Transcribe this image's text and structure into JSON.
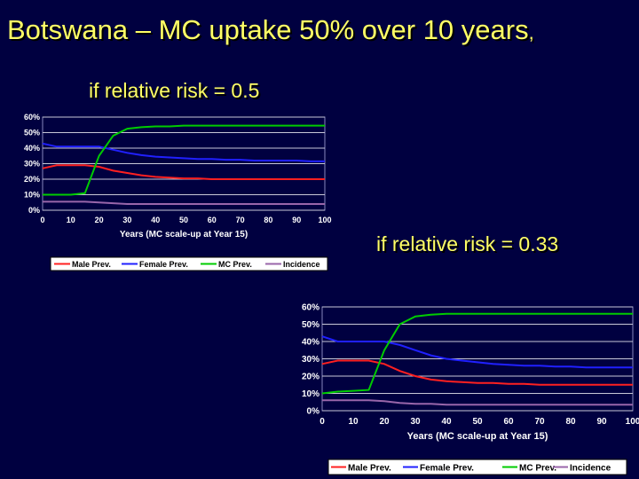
{
  "slide": {
    "title": "Botswana – MC uptake 50% over 10 years",
    "title_suffix": ",",
    "subtitle_1": "if relative risk = 0.5",
    "subtitle_2": "if relative risk = 0.33"
  },
  "colors": {
    "background": "#000040",
    "title": "#ffff66",
    "Male Prev.": "#ff2020",
    "Female Prev.": "#2020ff",
    "MC Prev.": "#00cc00",
    "Incidence": "#9966aa"
  },
  "chart_data": [
    {
      "type": "line",
      "xlabel": "Years (MC scale-up at Year 15)",
      "ylabel": "",
      "xlim": [
        0,
        100
      ],
      "ylim": [
        0,
        0.6
      ],
      "xticks": [
        0,
        10,
        20,
        30,
        40,
        50,
        60,
        70,
        80,
        90,
        100
      ],
      "yticks": [
        "0%",
        "10%",
        "20%",
        "30%",
        "40%",
        "50%",
        "60%"
      ],
      "grid": true,
      "legend": "bottom",
      "x": [
        0,
        5,
        10,
        15,
        20,
        25,
        30,
        35,
        40,
        45,
        50,
        55,
        60,
        65,
        70,
        75,
        80,
        85,
        90,
        95,
        100
      ],
      "series": [
        {
          "name": "Male Prev.",
          "values": [
            0.27,
            0.29,
            0.29,
            0.29,
            0.28,
            0.255,
            0.24,
            0.225,
            0.215,
            0.21,
            0.205,
            0.205,
            0.2,
            0.2,
            0.2,
            0.2,
            0.2,
            0.2,
            0.2,
            0.2,
            0.2
          ]
        },
        {
          "name": "Female Prev.",
          "values": [
            0.43,
            0.41,
            0.41,
            0.41,
            0.41,
            0.39,
            0.37,
            0.355,
            0.345,
            0.34,
            0.335,
            0.33,
            0.33,
            0.325,
            0.325,
            0.32,
            0.32,
            0.32,
            0.32,
            0.315,
            0.315
          ]
        },
        {
          "name": "MC Prev.",
          "values": [
            0.1,
            0.1,
            0.1,
            0.11,
            0.35,
            0.48,
            0.525,
            0.535,
            0.54,
            0.54,
            0.545,
            0.545,
            0.545,
            0.545,
            0.545,
            0.545,
            0.545,
            0.545,
            0.545,
            0.545,
            0.545
          ]
        },
        {
          "name": "Incidence",
          "values": [
            0.055,
            0.055,
            0.055,
            0.055,
            0.05,
            0.045,
            0.04,
            0.04,
            0.04,
            0.04,
            0.04,
            0.04,
            0.04,
            0.04,
            0.04,
            0.04,
            0.04,
            0.04,
            0.04,
            0.04,
            0.04
          ]
        }
      ]
    },
    {
      "type": "line",
      "xlabel": "Years (MC scale-up at Year 15)",
      "ylabel": "",
      "xlim": [
        0,
        100
      ],
      "ylim": [
        0,
        0.6
      ],
      "xticks": [
        0,
        10,
        20,
        30,
        40,
        50,
        60,
        70,
        80,
        90,
        100
      ],
      "yticks": [
        "0%",
        "10%",
        "20%",
        "30%",
        "40%",
        "50%",
        "60%"
      ],
      "grid": true,
      "legend": "bottom",
      "x": [
        0,
        5,
        10,
        15,
        20,
        25,
        30,
        35,
        40,
        45,
        50,
        55,
        60,
        65,
        70,
        75,
        80,
        85,
        90,
        95,
        100
      ],
      "series": [
        {
          "name": "Male Prev.",
          "values": [
            0.27,
            0.29,
            0.29,
            0.29,
            0.27,
            0.23,
            0.2,
            0.18,
            0.17,
            0.165,
            0.16,
            0.16,
            0.155,
            0.155,
            0.15,
            0.15,
            0.15,
            0.15,
            0.15,
            0.15,
            0.15
          ]
        },
        {
          "name": "Female Prev.",
          "values": [
            0.43,
            0.4,
            0.4,
            0.4,
            0.4,
            0.38,
            0.35,
            0.32,
            0.3,
            0.29,
            0.28,
            0.27,
            0.265,
            0.26,
            0.26,
            0.255,
            0.255,
            0.25,
            0.25,
            0.25,
            0.25
          ]
        },
        {
          "name": "MC Prev.",
          "values": [
            0.1,
            0.11,
            0.115,
            0.12,
            0.35,
            0.5,
            0.545,
            0.555,
            0.56,
            0.56,
            0.56,
            0.56,
            0.56,
            0.56,
            0.56,
            0.56,
            0.56,
            0.56,
            0.56,
            0.56,
            0.56
          ]
        },
        {
          "name": "Incidence",
          "values": [
            0.06,
            0.06,
            0.06,
            0.06,
            0.055,
            0.045,
            0.04,
            0.04,
            0.035,
            0.035,
            0.035,
            0.035,
            0.035,
            0.035,
            0.035,
            0.035,
            0.035,
            0.035,
            0.035,
            0.035,
            0.035
          ]
        }
      ]
    }
  ]
}
